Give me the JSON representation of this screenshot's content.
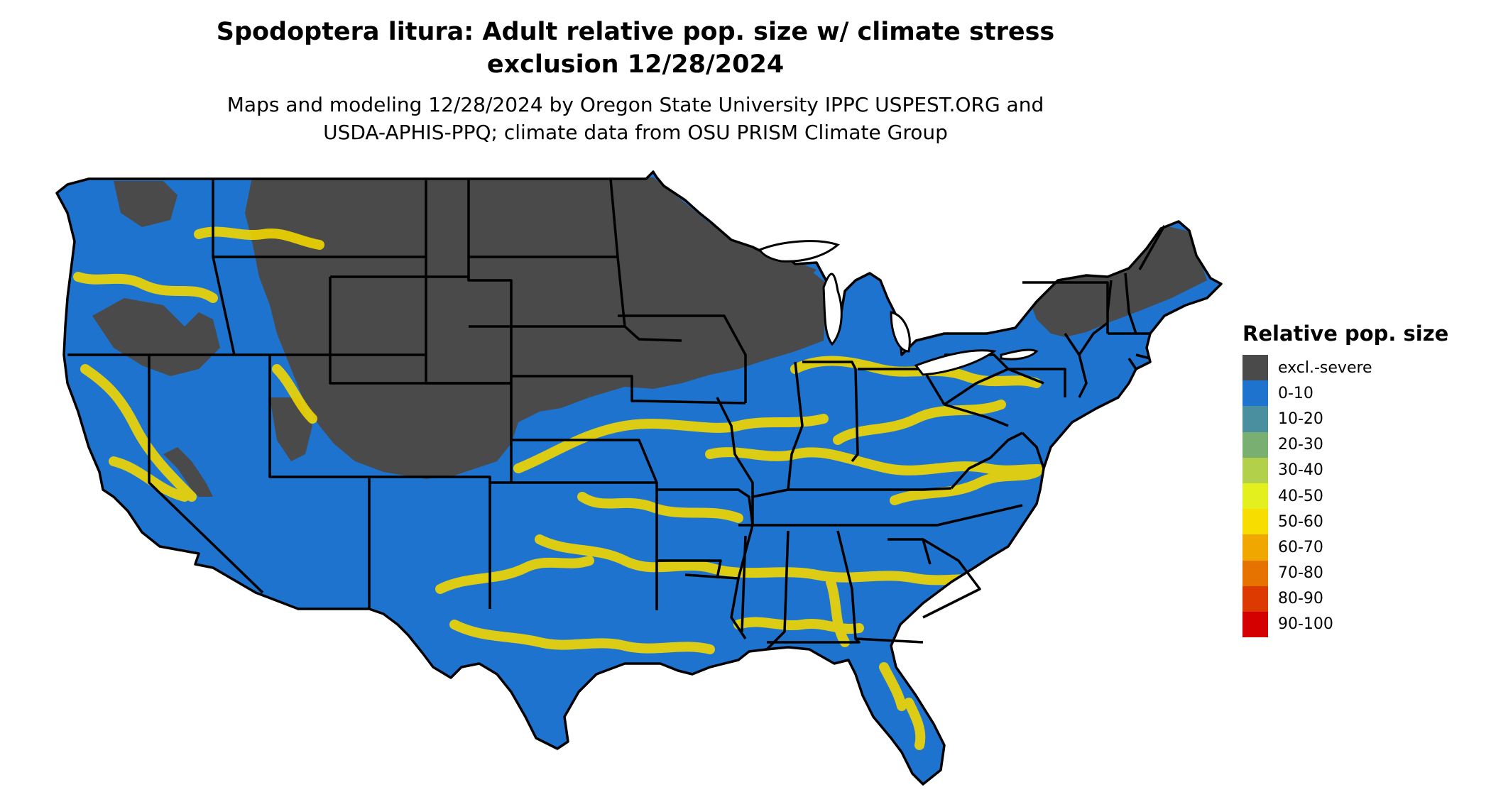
{
  "title_line1": "Spodoptera litura: Adult relative pop. size w/ climate stress",
  "title_line2": "exclusion 12/28/2024",
  "subtitle_line1": "Maps and modeling 12/28/2024 by Oregon State University IPPC USPEST.ORG and",
  "subtitle_line2": "USDA-APHIS-PPQ; climate data from OSU PRISM Climate Group",
  "legend": {
    "title": "Relative pop. size",
    "items": [
      {
        "label": "excl.-severe",
        "color": "#4a4a4a"
      },
      {
        "label": "0-10",
        "color": "#1e73cf"
      },
      {
        "label": "10-20",
        "color": "#4a8fa0"
      },
      {
        "label": "20-30",
        "color": "#7aaf72"
      },
      {
        "label": "30-40",
        "color": "#b3d04a"
      },
      {
        "label": "40-50",
        "color": "#e4ef1e"
      },
      {
        "label": "50-60",
        "color": "#f7de00"
      },
      {
        "label": "60-70",
        "color": "#f0a800"
      },
      {
        "label": "70-80",
        "color": "#e67300"
      },
      {
        "label": "80-90",
        "color": "#dc3a00"
      },
      {
        "label": "90-100",
        "color": "#d40000"
      }
    ]
  },
  "colors": {
    "excluded": "#4a4a4a",
    "low": "#1e73cf",
    "band": "#f2d600",
    "band_edge": "#e4ef1e",
    "border": "#000000"
  }
}
